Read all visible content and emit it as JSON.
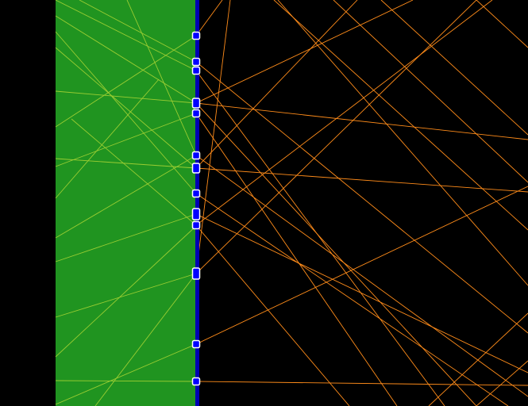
{
  "scene": {
    "colors": {
      "background": "#000000",
      "medium_panel": "#209420",
      "interface_line": "#0000b4",
      "marker_fill": "#0000ff",
      "marker_border": "#ffffff",
      "ray_in_medium": "#9acd32",
      "ray_outside": "#ff8c1a"
    },
    "marker_count": 13
  }
}
